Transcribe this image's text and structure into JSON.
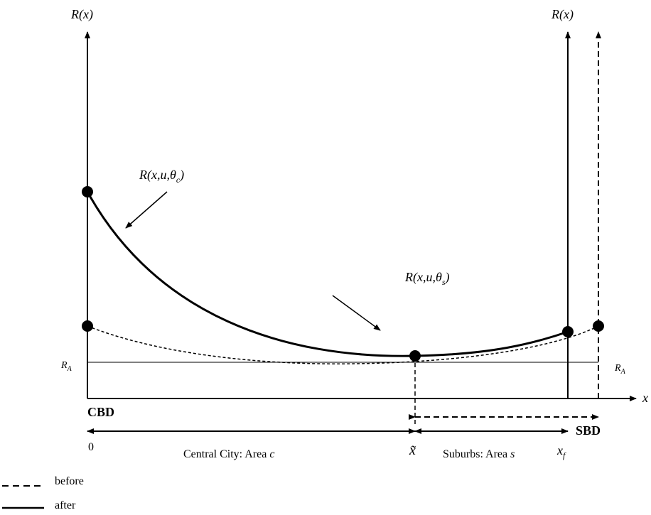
{
  "axes": {
    "y_label_left": "R(x)",
    "y_label_right": "R(x)",
    "x_label": "x"
  },
  "curve_labels": {
    "central": {
      "base": "R(x,u,θ",
      "sub": "c",
      "close": ")"
    },
    "suburb": {
      "base": "R(x,u,θ",
      "sub": "s",
      "close": ")"
    }
  },
  "levels": {
    "ra_left": {
      "base": "R",
      "sub": "A"
    },
    "ra_right": {
      "base": "R",
      "sub": "A"
    }
  },
  "locations": {
    "cbd": "CBD",
    "sbd": "SBD",
    "zero": "0",
    "x_tilde": "x̃",
    "x_f": {
      "base": "x",
      "sub": "f"
    }
  },
  "areas": {
    "central": {
      "text": "Central City: Area ",
      "var": "c"
    },
    "suburbs": {
      "text": "Suburbs: Area ",
      "var": "s"
    }
  },
  "legend": [
    {
      "style": "dashed",
      "label": "before"
    },
    {
      "style": "solid",
      "label": "after"
    }
  ]
}
